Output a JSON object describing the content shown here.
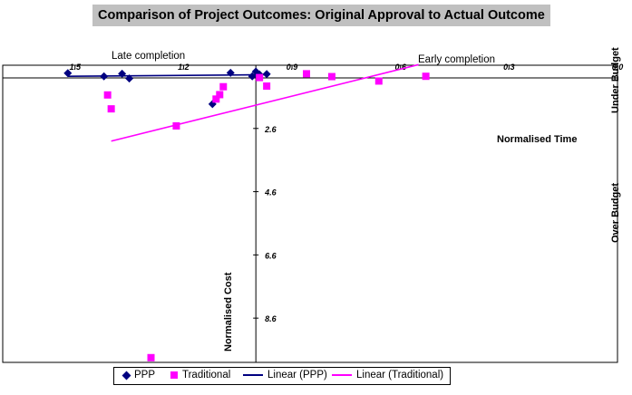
{
  "chart_data": {
    "type": "scatter",
    "title": "Comparison of Project Outcomes: Original Approval to Actual Outcome",
    "xlabel": "Normalised Time",
    "ylabel": "Normalised Cost",
    "x_reversed": true,
    "xlim": [
      0.0,
      1.7
    ],
    "ylim": [
      10.0,
      0.6
    ],
    "x_ticks": [
      1.5,
      1.2,
      0.9,
      0.6,
      0.3,
      0.0
    ],
    "x_tick_labels": [
      "1.5",
      "1.2",
      "0.9",
      "0.6",
      "0.3",
      "0.0"
    ],
    "y_ticks": [
      2.6,
      4.6,
      6.6,
      8.6
    ],
    "y_tick_labels": [
      "2.6",
      "4.6",
      "6.6",
      "8.6"
    ],
    "axis_crossing": {
      "x": 1.0,
      "y": 0.6
    },
    "annotations": {
      "late": "Late completion",
      "early": "Early completion",
      "under_budget": "Under Budget",
      "over_budget": "Over Budget"
    },
    "series": [
      {
        "name": "PPP",
        "marker": "diamond",
        "color": "#000080",
        "points": [
          {
            "x": 1.52,
            "y": 0.85
          },
          {
            "x": 1.42,
            "y": 0.95
          },
          {
            "x": 1.37,
            "y": 0.87
          },
          {
            "x": 1.35,
            "y": 1.02
          },
          {
            "x": 1.12,
            "y": 1.83
          },
          {
            "x": 1.07,
            "y": 0.84
          },
          {
            "x": 1.01,
            "y": 0.95
          },
          {
            "x": 1.0,
            "y": 0.8
          },
          {
            "x": 0.99,
            "y": 0.89
          },
          {
            "x": 0.97,
            "y": 0.88
          }
        ]
      },
      {
        "name": "Traditional",
        "marker": "square",
        "color": "#ff00ff",
        "points": [
          {
            "x": 1.41,
            "y": 1.54
          },
          {
            "x": 1.4,
            "y": 1.98
          },
          {
            "x": 1.22,
            "y": 2.52
          },
          {
            "x": 1.29,
            "y": 9.85
          },
          {
            "x": 1.11,
            "y": 1.67
          },
          {
            "x": 1.1,
            "y": 1.53
          },
          {
            "x": 1.09,
            "y": 1.28
          },
          {
            "x": 0.99,
            "y": 0.99
          },
          {
            "x": 0.97,
            "y": 1.26
          },
          {
            "x": 0.86,
            "y": 0.87
          },
          {
            "x": 0.79,
            "y": 0.96
          },
          {
            "x": 0.66,
            "y": 1.1
          },
          {
            "x": 0.53,
            "y": 0.95
          }
        ]
      }
    ],
    "trendlines": [
      {
        "name": "Linear (PPP)",
        "color": "#000080",
        "from": {
          "x": 1.52,
          "y": 0.95
        },
        "to": {
          "x": 0.97,
          "y": 0.9
        }
      },
      {
        "name": "Linear (Traditional)",
        "color": "#ff00ff",
        "from": {
          "x": 1.4,
          "y": 3.0
        },
        "to": {
          "x": 0.55,
          "y": 0.58
        }
      }
    ],
    "legend": [
      "PPP",
      "Traditional",
      "Linear (PPP)",
      "Linear (Traditional)"
    ]
  }
}
